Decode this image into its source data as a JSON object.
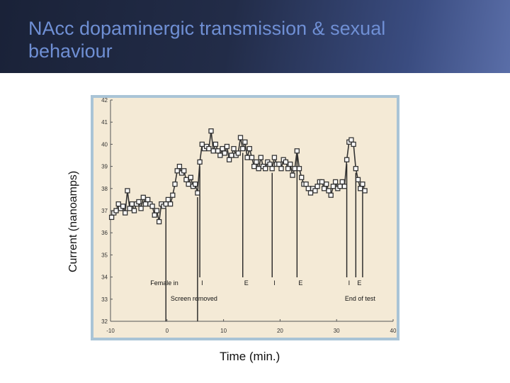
{
  "slide": {
    "title": "NAcc dopaminergic transmission & sexual behaviour"
  },
  "chart_data": {
    "type": "line",
    "xlabel": "Time (min.)",
    "ylabel": "Current (nanoamps)",
    "xlim": [
      -10,
      40
    ],
    "ylim": [
      32,
      42
    ],
    "xticks": [
      -10,
      0,
      10,
      20,
      30,
      40
    ],
    "yticks": [
      32,
      33,
      34,
      35,
      36,
      37,
      38,
      39,
      40,
      41,
      42
    ],
    "grid": false,
    "background_color": "#f4ead6",
    "frame_color": "#a9c4d6",
    "line_color": "#333333",
    "series": [
      {
        "marker": "square",
        "x": [
          -9.8,
          -9.4,
          -9,
          -8.6,
          -8.2,
          -7.8,
          -7.4,
          -7,
          -6.6,
          -6.2,
          -5.8,
          -5.4,
          -5,
          -4.6,
          -4.2,
          -3.8,
          -3.4,
          -3,
          -2.6,
          -2.2,
          -1.8,
          -1.4,
          -1,
          -0.6,
          -0.2,
          0.2,
          0.6,
          1,
          1.4,
          1.8,
          2.2,
          2.6,
          3,
          3.4,
          3.8,
          4.2,
          4.6,
          5,
          5.4,
          5.8,
          6.2,
          6.6,
          7,
          7.4,
          7.8,
          8.2,
          8.6,
          9,
          9.4,
          9.8,
          10.2,
          10.6,
          11,
          11.4,
          11.8,
          12.2,
          12.6,
          13,
          13.4,
          13.8,
          14.2,
          14.6,
          15,
          15.4,
          15.8,
          16.2,
          16.6,
          17,
          17.4,
          17.8,
          18.2,
          18.6,
          19,
          19.4,
          19.8,
          20.2,
          20.6,
          21,
          21.4,
          21.8,
          22.2,
          22.6,
          23,
          23.4,
          23.8,
          24.2,
          24.6,
          25,
          25.4,
          25.8,
          26.2,
          26.6,
          27,
          27.4,
          27.8,
          28.2,
          28.6,
          29,
          29.4,
          29.8,
          30.2,
          30.6,
          31,
          31.4,
          31.8,
          32.2,
          32.6,
          33,
          33.4,
          33.8,
          34.2,
          34.6,
          35
        ],
        "y": [
          36.7,
          36.9,
          37,
          37.3,
          37.1,
          37.2,
          36.9,
          37.9,
          37.1,
          37.3,
          37,
          37.3,
          37.4,
          37.1,
          37.6,
          37.3,
          37.5,
          37.3,
          37.2,
          36.8,
          37,
          36.5,
          37.3,
          37.2,
          37.3,
          37.5,
          37.3,
          37.7,
          38.2,
          38.8,
          39,
          38.7,
          38.8,
          38.4,
          38.2,
          38.5,
          38.1,
          38.2,
          37.8,
          39.2,
          40,
          39.8,
          39.9,
          39.8,
          40.6,
          39.7,
          40,
          39.7,
          39.5,
          39.8,
          39.6,
          39.9,
          39.3,
          39.5,
          39.8,
          39.5,
          39.6,
          40.3,
          39.8,
          40.1,
          39.4,
          39.8,
          39.4,
          39,
          39.2,
          38.9,
          39.4,
          39,
          38.9,
          39.2,
          39.1,
          38.9,
          39.4,
          39.1,
          39.1,
          38.9,
          39.3,
          39.2,
          38.9,
          39.1,
          38.6,
          38.9,
          39.7,
          38.9,
          38.5,
          38.2,
          38.2,
          38,
          37.8,
          38,
          37.9,
          38.1,
          38.3,
          38.3,
          38,
          38.2,
          37.9,
          37.7,
          38.1,
          38.3,
          38,
          38.1,
          38.3,
          38.1,
          39.3,
          40.1,
          40.2,
          40,
          38.9,
          38.4,
          38,
          38.2,
          37.9
        ]
      }
    ],
    "annotations": [
      {
        "x": -0.2,
        "label": "Female in"
      },
      {
        "x": 5.4,
        "label": "Screen removed"
      },
      {
        "x": 5.8,
        "label": "I"
      },
      {
        "x": 13.4,
        "label": "E"
      },
      {
        "x": 18.6,
        "label": "I"
      },
      {
        "x": 23,
        "label": "E"
      },
      {
        "x": 31.8,
        "label": "I"
      },
      {
        "x": 33.4,
        "label": "E"
      },
      {
        "x": 34.6,
        "label": "End of test"
      }
    ]
  }
}
